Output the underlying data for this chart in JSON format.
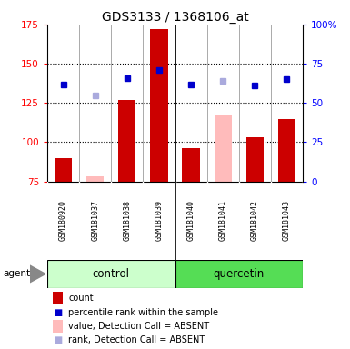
{
  "title": "GDS3133 / 1368106_at",
  "samples": [
    "GSM180920",
    "GSM181037",
    "GSM181038",
    "GSM181039",
    "GSM181040",
    "GSM181041",
    "GSM181042",
    "GSM181043"
  ],
  "bar_values": [
    90,
    78,
    127,
    172,
    96,
    117,
    103,
    115
  ],
  "bar_colors": [
    "#cc0000",
    "#ffbbbb",
    "#cc0000",
    "#cc0000",
    "#cc0000",
    "#ffbbbb",
    "#cc0000",
    "#cc0000"
  ],
  "dot_values": [
    137,
    130,
    141,
    146,
    137,
    139,
    136,
    140
  ],
  "dot_colors": [
    "#0000cc",
    "#aaaadd",
    "#0000cc",
    "#0000cc",
    "#0000cc",
    "#aaaadd",
    "#0000cc",
    "#0000cc"
  ],
  "ylim_left": [
    75,
    175
  ],
  "ylim_right": [
    0,
    100
  ],
  "yticks_left": [
    75,
    100,
    125,
    150,
    175
  ],
  "yticks_right": [
    0,
    25,
    50,
    75,
    100
  ],
  "ytick_labels_right": [
    "0",
    "25",
    "50",
    "75",
    "100%"
  ],
  "hlines": [
    100,
    125,
    150
  ],
  "control_label": "control",
  "quercetin_label": "quercetin",
  "agent_label": "agent",
  "bg_color": "#ffffff",
  "sample_bg_color": "#d3d3d3",
  "group_bg_light": "#ccffcc",
  "group_bg_dark": "#55dd55",
  "bar_width": 0.55
}
